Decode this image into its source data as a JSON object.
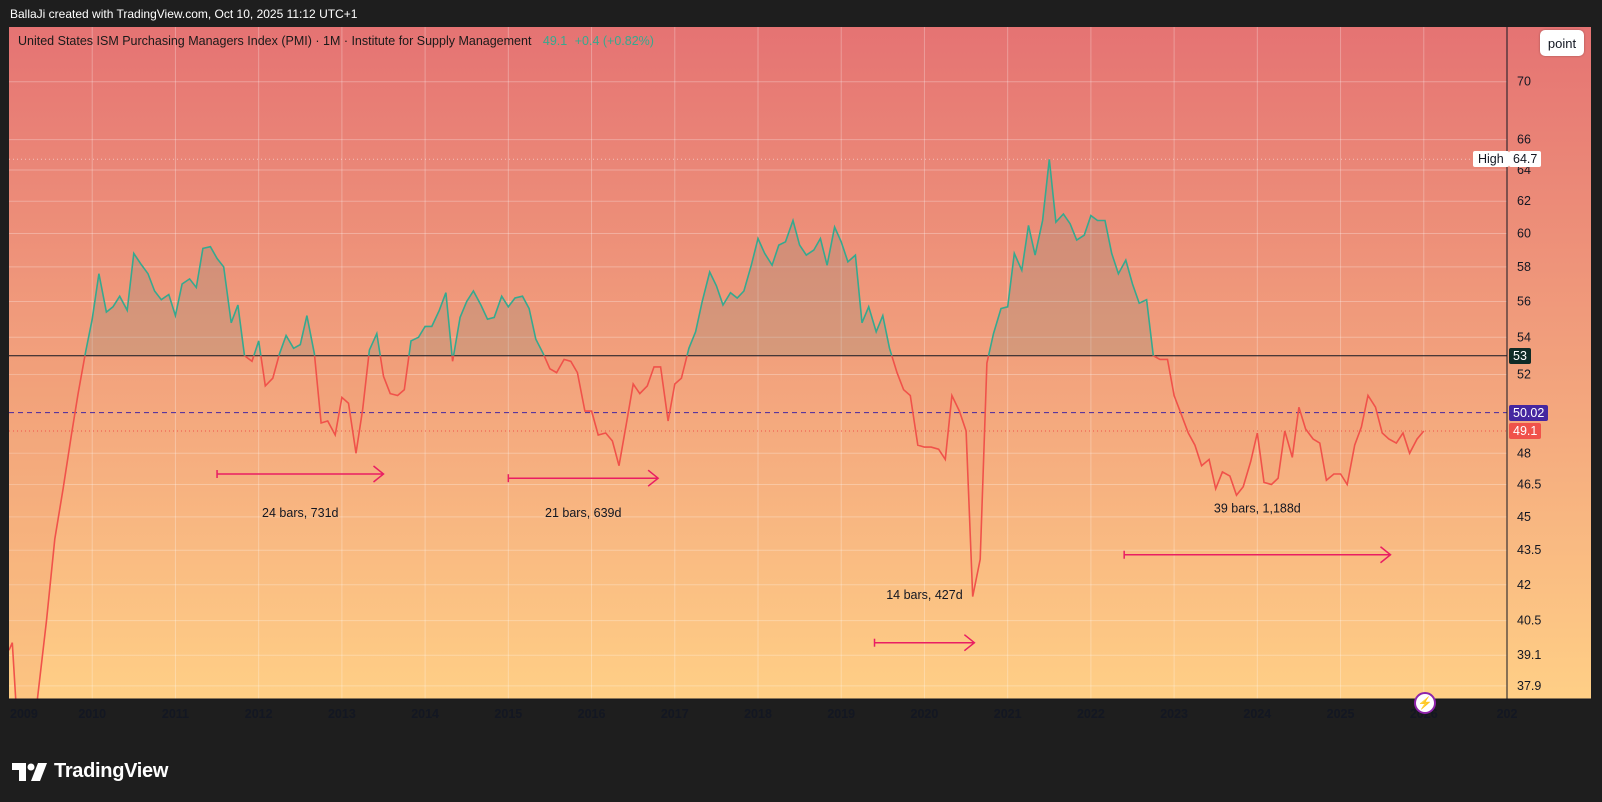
{
  "caption": "BallaJi created with TradingView.com, Oct 10, 2025 11:12 UTC+1",
  "legend": {
    "title": "United States ISM Purchasing Managers Index (PMI) · 1M · Institute for Supply Management",
    "value": "49.1",
    "change": "+0.4 (+0.82%)"
  },
  "point_button": "point",
  "footer": {
    "brand": "TradingView"
  },
  "colors": {
    "bg_top": "#e57373",
    "bg_bottom": "#ffcf86",
    "line_above": "#36a98f",
    "line_below": "#f0524a",
    "arrow": "#e91e63",
    "tag_purple": "#4527a0",
    "tag_red": "#f0524a",
    "tag_dark": "#0f2b26"
  },
  "chart_data": {
    "type": "line",
    "title": "United States ISM Purchasing Managers Index (PMI)",
    "interval": "1M",
    "source": "Institute for Supply Management",
    "x_tick_labels": [
      "2009",
      "2010",
      "2011",
      "2012",
      "2013",
      "2014",
      "2015",
      "2016",
      "2017",
      "2018",
      "2019",
      "2020",
      "2021",
      "2022",
      "2023",
      "2024",
      "2025",
      "2026",
      "202"
    ],
    "y_tick_labels": [
      "70",
      "66",
      "64",
      "62",
      "60",
      "58",
      "56",
      "54",
      "52",
      "48",
      "46.5",
      "45",
      "43.5",
      "42",
      "40.5",
      "39.1",
      "37.9"
    ],
    "y_ticks": [
      70,
      66,
      64,
      62,
      60,
      58,
      56,
      54,
      52,
      48,
      46.5,
      45,
      43.5,
      42,
      40.5,
      39.1,
      37.9
    ],
    "y_scale": "log",
    "ylim": [
      37.4,
      74
    ],
    "xlim": [
      2009.0,
      2027.0
    ],
    "grid": true,
    "threshold": 53,
    "series": [
      {
        "values": [
          [
            2009.0,
            39.3
          ],
          [
            2009.04,
            39.6
          ],
          [
            2009.08,
            37.4
          ],
          [
            2009.2,
            36.0
          ],
          [
            2009.3,
            36.3
          ],
          [
            2009.45,
            40.5
          ],
          [
            2009.55,
            44.0
          ],
          [
            2009.65,
            46.3
          ],
          [
            2009.75,
            48.9
          ],
          [
            2009.83,
            51.0
          ],
          [
            2009.92,
            53.2
          ],
          [
            2010.0,
            55.0
          ],
          [
            2010.08,
            57.6
          ],
          [
            2010.17,
            55.4
          ],
          [
            2010.25,
            55.7
          ],
          [
            2010.33,
            56.3
          ],
          [
            2010.42,
            55.5
          ],
          [
            2010.5,
            58.8
          ],
          [
            2010.58,
            58.2
          ],
          [
            2010.67,
            57.6
          ],
          [
            2010.75,
            56.6
          ],
          [
            2010.83,
            56.1
          ],
          [
            2010.92,
            56.4
          ],
          [
            2011.0,
            55.2
          ],
          [
            2011.08,
            57.0
          ],
          [
            2011.17,
            57.3
          ],
          [
            2011.25,
            56.8
          ],
          [
            2011.33,
            59.1
          ],
          [
            2011.42,
            59.2
          ],
          [
            2011.5,
            58.5
          ],
          [
            2011.58,
            58.0
          ],
          [
            2011.67,
            54.8
          ],
          [
            2011.75,
            55.8
          ],
          [
            2011.83,
            53.0
          ],
          [
            2011.92,
            52.7
          ],
          [
            2012.0,
            53.8
          ],
          [
            2012.08,
            51.4
          ],
          [
            2012.17,
            51.8
          ],
          [
            2012.25,
            53.1
          ],
          [
            2012.33,
            54.1
          ],
          [
            2012.42,
            53.4
          ],
          [
            2012.5,
            53.6
          ],
          [
            2012.58,
            55.2
          ],
          [
            2012.67,
            53.1
          ],
          [
            2012.75,
            49.5
          ],
          [
            2012.83,
            49.6
          ],
          [
            2012.92,
            48.9
          ],
          [
            2013.0,
            50.8
          ],
          [
            2013.08,
            50.5
          ],
          [
            2013.17,
            48.0
          ],
          [
            2013.25,
            50.2
          ],
          [
            2013.33,
            53.3
          ],
          [
            2013.42,
            54.2
          ],
          [
            2013.5,
            51.9
          ],
          [
            2013.58,
            51.0
          ],
          [
            2013.67,
            50.9
          ],
          [
            2013.75,
            51.2
          ],
          [
            2013.83,
            53.8
          ],
          [
            2013.92,
            54.0
          ],
          [
            2014.0,
            54.6
          ],
          [
            2014.08,
            54.6
          ],
          [
            2014.17,
            55.5
          ],
          [
            2014.25,
            56.5
          ],
          [
            2014.33,
            52.7
          ],
          [
            2014.42,
            55.1
          ],
          [
            2014.5,
            56.0
          ],
          [
            2014.58,
            56.6
          ],
          [
            2014.67,
            55.8
          ],
          [
            2014.75,
            55.0
          ],
          [
            2014.83,
            55.1
          ],
          [
            2014.92,
            56.3
          ],
          [
            2015.0,
            55.7
          ],
          [
            2015.08,
            56.2
          ],
          [
            2015.17,
            56.3
          ],
          [
            2015.25,
            55.6
          ],
          [
            2015.33,
            53.9
          ],
          [
            2015.42,
            53.1
          ],
          [
            2015.5,
            52.3
          ],
          [
            2015.58,
            52.1
          ],
          [
            2015.67,
            52.8
          ],
          [
            2015.75,
            52.7
          ],
          [
            2015.83,
            52.1
          ],
          [
            2015.92,
            50.1
          ],
          [
            2016.0,
            50.1
          ],
          [
            2016.08,
            48.9
          ],
          [
            2016.17,
            49.0
          ],
          [
            2016.25,
            48.6
          ],
          [
            2016.33,
            47.4
          ],
          [
            2016.42,
            49.5
          ],
          [
            2016.5,
            51.5
          ],
          [
            2016.58,
            51.0
          ],
          [
            2016.67,
            51.4
          ],
          [
            2016.75,
            52.4
          ],
          [
            2016.83,
            52.4
          ],
          [
            2016.92,
            49.6
          ],
          [
            2017.0,
            51.5
          ],
          [
            2017.08,
            51.8
          ],
          [
            2017.17,
            53.4
          ],
          [
            2017.25,
            54.3
          ],
          [
            2017.33,
            56.0
          ],
          [
            2017.42,
            57.7
          ],
          [
            2017.5,
            56.9
          ],
          [
            2017.58,
            55.8
          ],
          [
            2017.67,
            56.5
          ],
          [
            2017.75,
            56.2
          ],
          [
            2017.83,
            56.6
          ],
          [
            2017.92,
            58.1
          ],
          [
            2018.0,
            59.7
          ],
          [
            2018.08,
            58.8
          ],
          [
            2018.17,
            58.1
          ],
          [
            2018.25,
            59.3
          ],
          [
            2018.33,
            59.5
          ],
          [
            2018.42,
            60.8
          ],
          [
            2018.5,
            59.3
          ],
          [
            2018.58,
            58.7
          ],
          [
            2018.67,
            59.0
          ],
          [
            2018.75,
            59.7
          ],
          [
            2018.83,
            58.1
          ],
          [
            2018.92,
            60.4
          ],
          [
            2019.0,
            59.5
          ],
          [
            2019.08,
            58.3
          ],
          [
            2019.17,
            58.7
          ],
          [
            2019.25,
            54.8
          ],
          [
            2019.33,
            55.7
          ],
          [
            2019.42,
            54.3
          ],
          [
            2019.5,
            55.2
          ],
          [
            2019.58,
            53.4
          ],
          [
            2019.67,
            52.1
          ],
          [
            2019.75,
            51.2
          ],
          [
            2019.83,
            50.9
          ],
          [
            2019.92,
            48.4
          ],
          [
            2020.0,
            48.3
          ],
          [
            2020.08,
            48.3
          ],
          [
            2020.17,
            48.2
          ],
          [
            2020.25,
            47.7
          ],
          [
            2020.33,
            50.9
          ],
          [
            2020.42,
            50.1
          ],
          [
            2020.5,
            49.1
          ],
          [
            2020.58,
            41.5
          ],
          [
            2020.67,
            43.1
          ],
          [
            2020.75,
            52.6
          ],
          [
            2020.83,
            54.2
          ],
          [
            2020.92,
            55.6
          ],
          [
            2021.0,
            55.7
          ],
          [
            2021.08,
            58.8
          ],
          [
            2021.17,
            57.8
          ],
          [
            2021.25,
            60.5
          ],
          [
            2021.33,
            58.7
          ],
          [
            2021.42,
            60.8
          ],
          [
            2021.5,
            64.7
          ],
          [
            2021.58,
            60.7
          ],
          [
            2021.67,
            61.2
          ],
          [
            2021.75,
            60.6
          ],
          [
            2021.83,
            59.6
          ],
          [
            2021.92,
            59.9
          ],
          [
            2022.0,
            61.1
          ],
          [
            2022.08,
            60.8
          ],
          [
            2022.17,
            60.8
          ],
          [
            2022.25,
            58.8
          ],
          [
            2022.33,
            57.6
          ],
          [
            2022.42,
            58.4
          ],
          [
            2022.5,
            57.0
          ],
          [
            2022.58,
            55.9
          ],
          [
            2022.67,
            56.1
          ],
          [
            2022.75,
            53.0
          ],
          [
            2022.83,
            52.8
          ],
          [
            2022.92,
            52.8
          ],
          [
            2023.0,
            50.9
          ],
          [
            2023.08,
            50.0
          ],
          [
            2023.17,
            49.0
          ],
          [
            2023.25,
            48.4
          ],
          [
            2023.33,
            47.4
          ],
          [
            2023.42,
            47.7
          ],
          [
            2023.5,
            46.3
          ],
          [
            2023.58,
            47.1
          ],
          [
            2023.67,
            46.9
          ],
          [
            2023.75,
            46.0
          ],
          [
            2023.83,
            46.4
          ],
          [
            2023.92,
            47.6
          ],
          [
            2024.0,
            49.0
          ],
          [
            2024.08,
            46.6
          ],
          [
            2024.17,
            46.5
          ],
          [
            2024.25,
            46.8
          ],
          [
            2024.33,
            49.1
          ],
          [
            2024.42,
            47.8
          ],
          [
            2024.5,
            50.3
          ],
          [
            2024.58,
            49.2
          ],
          [
            2024.67,
            48.7
          ],
          [
            2024.75,
            48.5
          ],
          [
            2024.83,
            46.7
          ],
          [
            2024.92,
            47.0
          ],
          [
            2025.0,
            47.0
          ],
          [
            2025.08,
            46.5
          ],
          [
            2025.17,
            48.4
          ],
          [
            2025.25,
            49.3
          ],
          [
            2025.33,
            50.9
          ],
          [
            2025.42,
            50.3
          ],
          [
            2025.5,
            49.0
          ],
          [
            2025.58,
            48.7
          ],
          [
            2025.67,
            48.5
          ],
          [
            2025.75,
            49.0
          ],
          [
            2025.83,
            48.0
          ],
          [
            2025.92,
            48.7
          ],
          [
            2026.0,
            49.1
          ]
        ]
      }
    ],
    "horizontal_lines": [
      {
        "value": 53,
        "label": "53",
        "style": "solid"
      },
      {
        "value": 50.02,
        "label": "50.02",
        "style": "dashed"
      },
      {
        "value": 49.1,
        "label": "49.1",
        "style": "dotted"
      }
    ],
    "high_marker": {
      "label": "High",
      "value": 64.7,
      "value_label": "64.7"
    },
    "annotations": [
      {
        "label": "24 bars, 731d",
        "label_x": 2012.5,
        "label_y": 45.0,
        "arrow_y": 47.0,
        "x_from": 2011.5,
        "x_to": 2013.5
      },
      {
        "label": "21 bars, 639d",
        "label_x": 2015.9,
        "label_y": 45.0,
        "arrow_y": 46.8,
        "x_from": 2015.0,
        "x_to": 2016.8
      },
      {
        "label": "14 bars, 427d",
        "label_x": 2020.0,
        "label_y": 41.4,
        "arrow_y": 39.6,
        "x_from": 2019.4,
        "x_to": 2020.6
      },
      {
        "label": "39 bars, 1,188d",
        "label_x": 2024.0,
        "label_y": 45.2,
        "arrow_y": 43.3,
        "x_from": 2022.4,
        "x_to": 2025.6
      }
    ]
  }
}
